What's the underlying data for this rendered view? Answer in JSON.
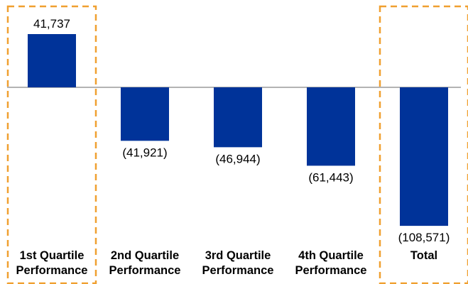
{
  "chart_data": {
    "type": "bar",
    "categories": [
      [
        "1st Quartile",
        "Performance"
      ],
      [
        "2nd Quartile",
        "Performance"
      ],
      [
        "3rd Quartile",
        "Performance"
      ],
      [
        "4th Quartile",
        "Performance"
      ],
      [
        "Total",
        ""
      ]
    ],
    "values": [
      41737,
      -41921,
      -46944,
      -61443,
      -108571
    ],
    "value_labels": [
      "41,737",
      "(41,921)",
      "(46,944)",
      "(61,443)",
      "(108,571)"
    ],
    "highlighted_categories": [
      0,
      4
    ],
    "title": "",
    "xlabel": "",
    "ylabel": "",
    "grid": false,
    "legend": "none",
    "colors": {
      "bar": "#003399",
      "axis": "#9a9a9a",
      "highlight_border": "#f0a030",
      "text": "#000000"
    }
  }
}
